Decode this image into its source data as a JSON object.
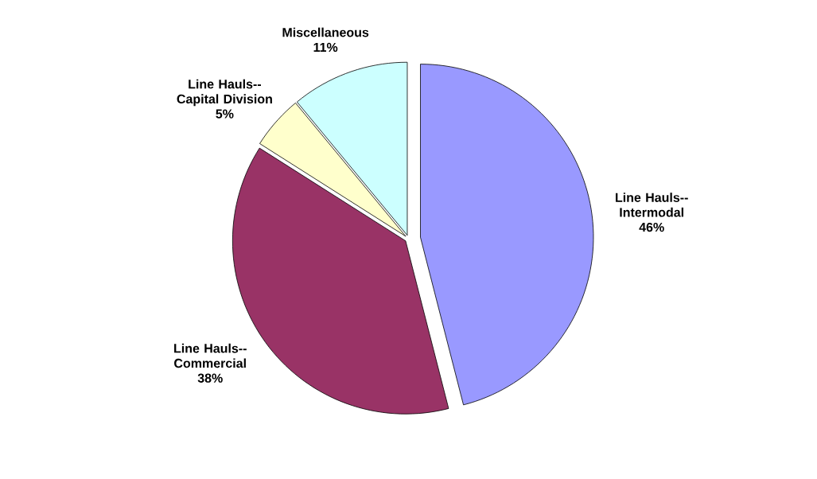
{
  "chart_data": {
    "type": "pie",
    "categories": [
      "Line Hauls-- Intermodal",
      "Line Hauls-- Commercial",
      "Line Hauls-- Capital Division",
      "Miscellaneous"
    ],
    "values": [
      46,
      38,
      5,
      11
    ],
    "value_labels": [
      "46%",
      "38%",
      "5%",
      "11%"
    ],
    "colors": [
      "#9999ff",
      "#993366",
      "#ffffcc",
      "#ccffff"
    ]
  }
}
